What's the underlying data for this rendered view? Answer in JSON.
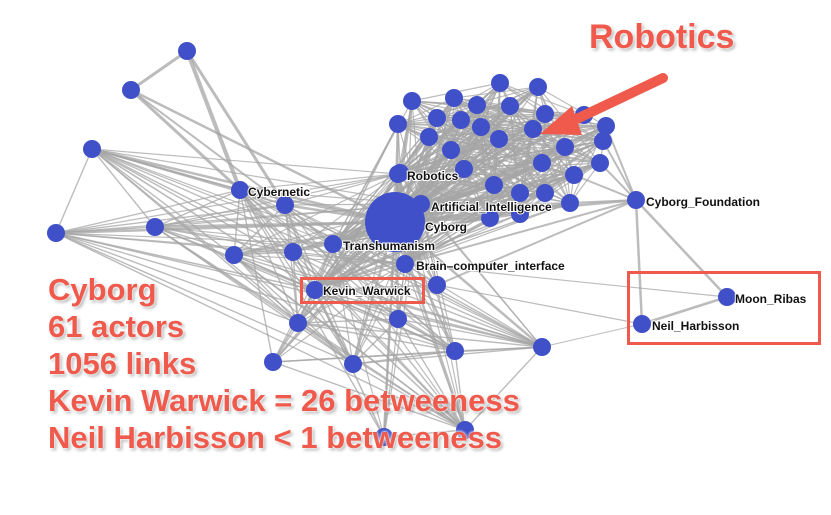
{
  "node_labels": {
    "robotics": "Robotics",
    "cybernetic": "Cybernetic",
    "artificial_intelligence": "Artificial_Intelligence",
    "cyborg": "Cyborg",
    "transhumanism": "Transhumanism",
    "brain_computer_interface": "Brain–computer_interface",
    "kevin_warwick": "Kevin_Warwick",
    "cyborg_foundation": "Cyborg_Foundation",
    "moon_ribas": "Moon_Ribas",
    "neil_harbisson": "Neil_Harbisson"
  },
  "annotation": {
    "title": "Robotics"
  },
  "stats": {
    "line1": "Cyborg",
    "line2": "61 actors",
    "line3": "1056 links",
    "line4": "Kevin Warwick = 26 betweeness",
    "line5": "Neil Harbisson < 1 betweeness"
  },
  "colors": {
    "node": "#4050c8",
    "edge": "#a6a6a6",
    "accent": "#ef5a4c"
  }
}
